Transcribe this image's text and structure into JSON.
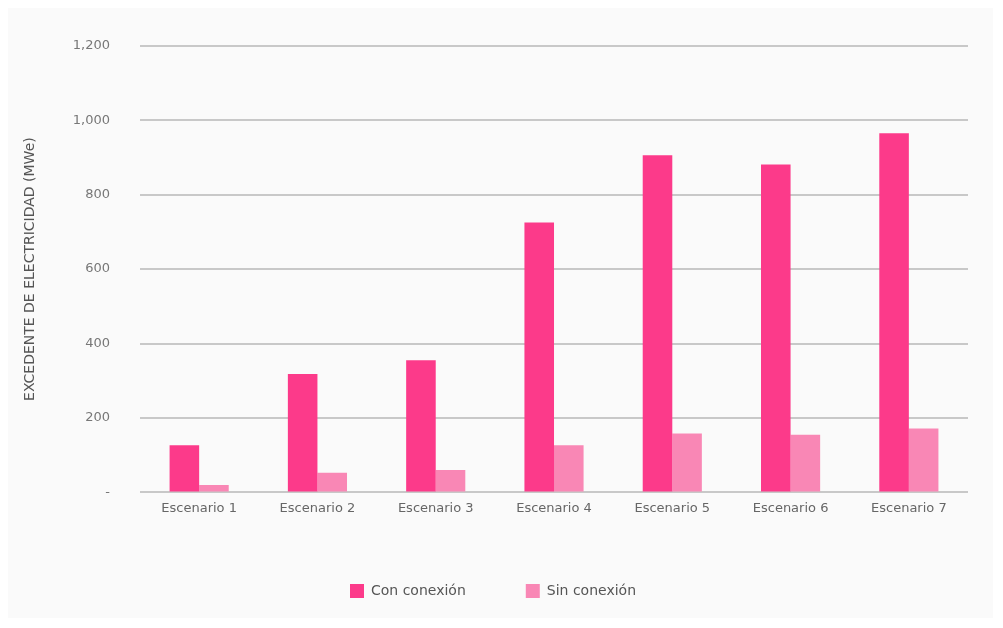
{
  "chart_data": {
    "type": "bar",
    "ylabel": "EXCEDENTE DE ELECTRICIDAD (MWe)",
    "categories": [
      "Escenario 1",
      "Escenario 2",
      "Escenario 3",
      "Escenario 4",
      "Escenario 5",
      "Escenario 6",
      "Escenario 7"
    ],
    "series": [
      {
        "name": "Con conexión",
        "color": "#fc3a8a",
        "values": [
          127,
          318,
          355,
          725,
          906,
          881,
          965
        ]
      },
      {
        "name": "Sin conexión",
        "color": "#f987b5",
        "values": [
          20,
          53,
          60,
          127,
          158,
          155,
          172
        ]
      }
    ],
    "ylim": [
      0,
      1200
    ],
    "yticks": [
      {
        "value": 0,
        "label": "-"
      },
      200,
      400,
      600,
      800,
      {
        "value": 1000,
        "label": "1,000"
      },
      {
        "value": 1200,
        "label": "1,200"
      }
    ],
    "grid": "y",
    "legend": "bottom"
  }
}
